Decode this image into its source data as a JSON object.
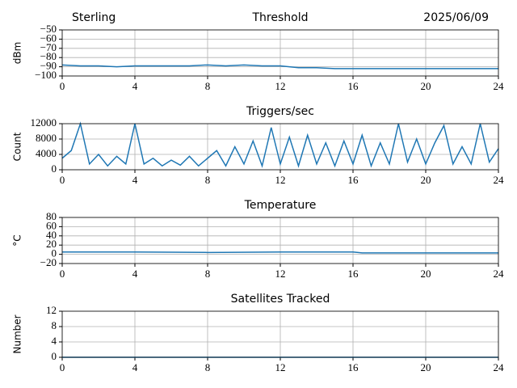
{
  "chart_data": [
    {
      "type": "line",
      "title": "Threshold",
      "title_left": "Sterling",
      "title_right": "2025/06/09",
      "ylabel": "dBm",
      "xlim": [
        0,
        24
      ],
      "xticks": [
        0,
        4,
        8,
        12,
        16,
        20,
        24
      ],
      "ylim": [
        -100,
        -50
      ],
      "yticks": [
        {
          "value": -100,
          "label": "−100"
        },
        {
          "value": -90,
          "label": "−90"
        },
        {
          "value": -80,
          "label": "−80"
        },
        {
          "value": -70,
          "label": "−70"
        },
        {
          "value": -60,
          "label": "−60"
        },
        {
          "value": -50,
          "label": "−50"
        }
      ],
      "grid": true,
      "series": [
        {
          "color": "#1f77b4",
          "x": [
            0,
            1,
            2,
            3,
            4,
            5,
            6,
            7,
            8,
            9,
            10,
            11,
            12,
            13,
            14,
            15,
            16,
            17,
            18,
            19,
            20,
            21,
            22,
            23,
            24
          ],
          "values": [
            -88,
            -89,
            -89,
            -90,
            -89,
            -89,
            -89,
            -89,
            -88,
            -89,
            -88,
            -89,
            -89,
            -91,
            -91,
            -92,
            -92,
            -92,
            -92,
            -92,
            -92,
            -92,
            -92,
            -92,
            -92
          ]
        }
      ]
    },
    {
      "type": "line",
      "title": "Triggers/sec",
      "ylabel": "Count",
      "xlim": [
        0,
        24
      ],
      "xticks": [
        0,
        4,
        8,
        12,
        16,
        20,
        24
      ],
      "ylim": [
        0,
        12000
      ],
      "yticks": [
        0,
        4000,
        8000,
        12000
      ],
      "grid": true,
      "series": [
        {
          "color": "#1f77b4",
          "x": [
            0,
            0.5,
            1,
            1.5,
            2,
            2.5,
            3,
            3.5,
            4,
            4.5,
            5,
            5.5,
            6,
            6.5,
            7,
            7.5,
            8,
            8.5,
            9,
            9.5,
            10,
            10.5,
            11,
            11.5,
            12,
            12.5,
            13,
            13.5,
            14,
            14.5,
            15,
            15.5,
            16,
            16.5,
            17,
            17.5,
            18,
            18.5,
            19,
            19.5,
            20,
            20.5,
            21,
            21.5,
            22,
            22.5,
            23,
            23.5,
            24
          ],
          "values": [
            3000,
            5000,
            12000,
            1500,
            4000,
            1000,
            3500,
            1500,
            12000,
            1500,
            3000,
            1000,
            2500,
            1200,
            3500,
            1000,
            3000,
            5000,
            1000,
            6000,
            1500,
            7500,
            1000,
            11000,
            1500,
            8500,
            1000,
            9000,
            1500,
            7000,
            1000,
            7500,
            1500,
            9000,
            1000,
            7000,
            1500,
            12000,
            2000,
            8000,
            1500,
            7000,
            11500,
            1500,
            6000,
            1500,
            12000,
            2000,
            5500
          ]
        }
      ]
    },
    {
      "type": "line",
      "title": "Temperature",
      "ylabel": "°C",
      "xlim": [
        0,
        24
      ],
      "xticks": [
        0,
        4,
        8,
        12,
        16,
        20,
        24
      ],
      "ylim": [
        -20,
        80
      ],
      "yticks": [
        {
          "value": -20,
          "label": "−20"
        },
        0,
        20,
        40,
        60,
        80
      ],
      "grid": true,
      "series": [
        {
          "color": "#1f77b4",
          "x": [
            0,
            4,
            8,
            12,
            16,
            16.5,
            20,
            24
          ],
          "values": [
            5,
            5,
            4,
            5,
            5,
            3,
            3,
            3
          ]
        }
      ]
    },
    {
      "type": "line",
      "title": "Satellites Tracked",
      "ylabel": "Number",
      "xlim": [
        0,
        24
      ],
      "xticks": [
        0,
        4,
        8,
        12,
        16,
        20,
        24
      ],
      "ylim": [
        0,
        12
      ],
      "yticks": [
        0,
        4,
        8,
        12
      ],
      "grid": true,
      "series": [
        {
          "color": "#1f77b4",
          "x": [
            0,
            24
          ],
          "values": [
            0,
            0
          ]
        }
      ]
    }
  ]
}
